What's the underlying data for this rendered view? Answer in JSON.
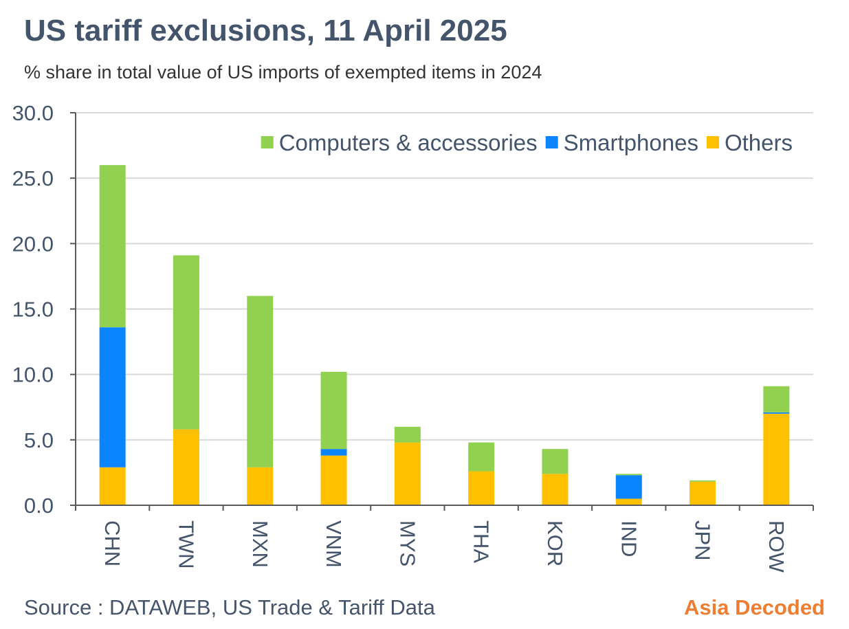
{
  "header": {
    "title": "US tariff exclusions, 11 April 2025",
    "subtitle": "% share in total value of US imports of exempted items in 2024"
  },
  "footer": {
    "source": "Source : DATAWEB, US Trade & Tariff Data",
    "brand": "Asia Decoded"
  },
  "chart_data": {
    "type": "bar",
    "stacked": true,
    "categories": [
      "CHN",
      "TWN",
      "MXN",
      "VNM",
      "MYS",
      "THA",
      "KOR",
      "IND",
      "JPN",
      "ROW"
    ],
    "series": [
      {
        "name": "Others",
        "color": "#ffc000",
        "values": [
          2.9,
          5.8,
          2.9,
          3.8,
          4.8,
          2.6,
          2.4,
          0.5,
          1.8,
          7.0
        ]
      },
      {
        "name": "Smartphones",
        "color": "#0a84ff",
        "values": [
          10.7,
          0.0,
          0.0,
          0.5,
          0.0,
          0.0,
          0.0,
          1.8,
          0.0,
          0.1
        ]
      },
      {
        "name": "Computers & accessories",
        "color": "#92d050",
        "values": [
          12.4,
          13.3,
          13.1,
          5.9,
          1.2,
          2.2,
          1.9,
          0.1,
          0.1,
          2.0
        ]
      }
    ],
    "legend_order": [
      "Computers & accessories",
      "Smartphones",
      "Others"
    ],
    "legend_position": "top-right",
    "ylim": [
      0,
      30
    ],
    "yticks": [
      "0.0",
      "5.0",
      "10.0",
      "15.0",
      "20.0",
      "25.0",
      "30.0"
    ],
    "xlabel": "",
    "ylabel": "",
    "grid": true
  }
}
